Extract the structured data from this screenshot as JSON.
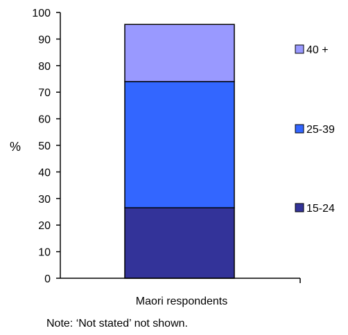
{
  "chart_data": {
    "type": "bar",
    "stacked": true,
    "categories": [
      "Maori respondents"
    ],
    "series": [
      {
        "name": "15-24",
        "values": [
          26.5
        ],
        "color": "#333399"
      },
      {
        "name": "25-39",
        "values": [
          47.5
        ],
        "color": "#3366ff"
      },
      {
        "name": "40 +",
        "values": [
          21.5
        ],
        "color": "#9999ff"
      }
    ],
    "ylabel": "%",
    "ylim": [
      0,
      100
    ],
    "yticks": [
      "0",
      "10",
      "20",
      "30",
      "40",
      "50",
      "60",
      "70",
      "80",
      "90",
      "100"
    ],
    "legend_position": "right",
    "grid": false,
    "note": "Note: ‘Not stated’ not shown."
  }
}
